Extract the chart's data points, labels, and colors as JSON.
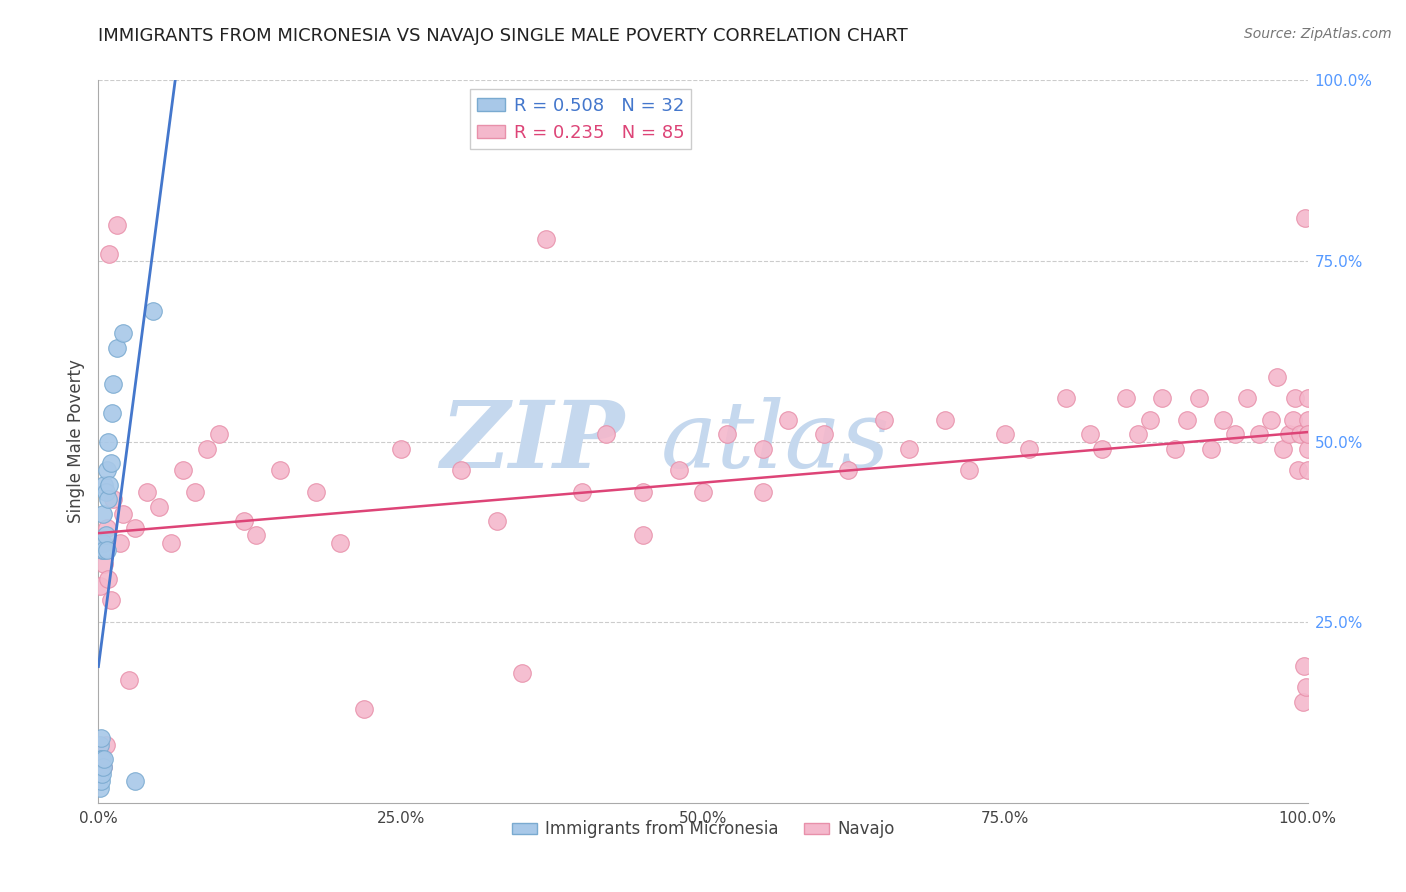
{
  "title": "IMMIGRANTS FROM MICRONESIA VS NAVAJO SINGLE MALE POVERTY CORRELATION CHART",
  "source": "Source: ZipAtlas.com",
  "ylabel": "Single Male Poverty",
  "xlim": [
    0,
    1
  ],
  "ylim": [
    0,
    1
  ],
  "blue_R": 0.508,
  "blue_N": 32,
  "pink_R": 0.235,
  "pink_N": 85,
  "blue_color": "#A8C8E8",
  "pink_color": "#F4B8CC",
  "blue_edge": "#7AAAD0",
  "pink_edge": "#E890AA",
  "trend_blue": "#4477CC",
  "trend_pink": "#DD4477",
  "background_color": "#FFFFFF",
  "grid_color": "#CCCCCC",
  "right_tick_color": "#5599FF",
  "blue_x": [
    0.001,
    0.001,
    0.001,
    0.001,
    0.001,
    0.002,
    0.002,
    0.002,
    0.002,
    0.003,
    0.003,
    0.003,
    0.004,
    0.004,
    0.004,
    0.005,
    0.005,
    0.005,
    0.006,
    0.006,
    0.007,
    0.007,
    0.008,
    0.008,
    0.009,
    0.01,
    0.011,
    0.012,
    0.015,
    0.02,
    0.03,
    0.045
  ],
  "blue_y": [
    0.02,
    0.04,
    0.05,
    0.06,
    0.08,
    0.03,
    0.05,
    0.06,
    0.09,
    0.04,
    0.06,
    0.35,
    0.05,
    0.36,
    0.4,
    0.06,
    0.35,
    0.44,
    0.37,
    0.43,
    0.35,
    0.46,
    0.42,
    0.5,
    0.44,
    0.47,
    0.54,
    0.58,
    0.63,
    0.65,
    0.03,
    0.68
  ],
  "pink_x": [
    0.001,
    0.002,
    0.003,
    0.004,
    0.005,
    0.006,
    0.007,
    0.008,
    0.009,
    0.01,
    0.012,
    0.015,
    0.018,
    0.02,
    0.025,
    0.03,
    0.04,
    0.05,
    0.06,
    0.07,
    0.08,
    0.09,
    0.1,
    0.12,
    0.15,
    0.18,
    0.2,
    0.25,
    0.3,
    0.33,
    0.37,
    0.4,
    0.42,
    0.45,
    0.48,
    0.5,
    0.52,
    0.55,
    0.57,
    0.6,
    0.62,
    0.65,
    0.67,
    0.7,
    0.72,
    0.75,
    0.77,
    0.8,
    0.82,
    0.83,
    0.85,
    0.86,
    0.87,
    0.88,
    0.89,
    0.9,
    0.91,
    0.92,
    0.93,
    0.94,
    0.95,
    0.96,
    0.97,
    0.975,
    0.98,
    0.985,
    0.988,
    0.99,
    0.992,
    0.994,
    0.996,
    0.997,
    0.998,
    0.999,
    1.0,
    1.0,
    1.0,
    1.0,
    1.0,
    1.0,
    0.55,
    0.45,
    0.35,
    0.22,
    0.13
  ],
  "pink_y": [
    0.3,
    0.07,
    0.36,
    0.05,
    0.33,
    0.08,
    0.38,
    0.31,
    0.76,
    0.28,
    0.42,
    0.8,
    0.36,
    0.4,
    0.17,
    0.38,
    0.43,
    0.41,
    0.36,
    0.46,
    0.43,
    0.49,
    0.51,
    0.39,
    0.46,
    0.43,
    0.36,
    0.49,
    0.46,
    0.39,
    0.78,
    0.43,
    0.51,
    0.43,
    0.46,
    0.43,
    0.51,
    0.49,
    0.53,
    0.51,
    0.46,
    0.53,
    0.49,
    0.53,
    0.46,
    0.51,
    0.49,
    0.56,
    0.51,
    0.49,
    0.56,
    0.51,
    0.53,
    0.56,
    0.49,
    0.53,
    0.56,
    0.49,
    0.53,
    0.51,
    0.56,
    0.51,
    0.53,
    0.59,
    0.49,
    0.51,
    0.53,
    0.56,
    0.46,
    0.51,
    0.14,
    0.19,
    0.81,
    0.16,
    0.51,
    0.53,
    0.49,
    0.46,
    0.56,
    0.51,
    0.43,
    0.37,
    0.18,
    0.13,
    0.37
  ]
}
